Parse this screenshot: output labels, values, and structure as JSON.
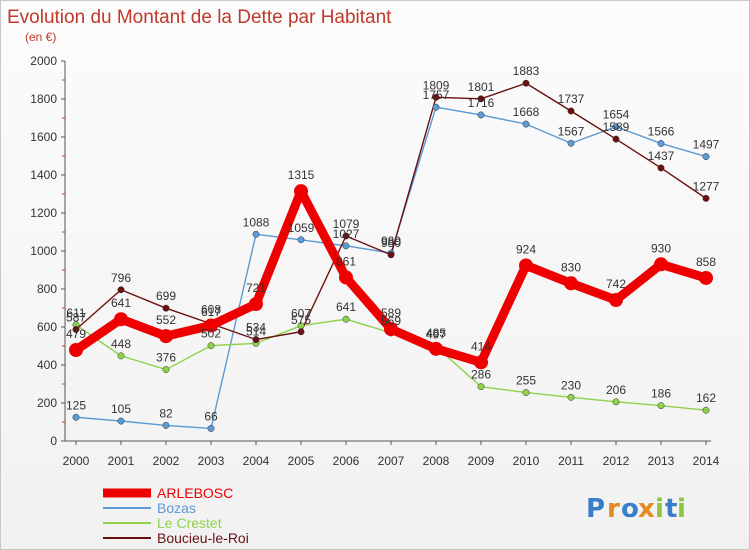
{
  "chart_data": {
    "type": "line",
    "title": "Evolution du Montant de la Dette par Habitant",
    "subtitle": "(en €)",
    "x": [
      "2000",
      "2001",
      "2002",
      "2003",
      "2004",
      "2005",
      "2006",
      "2007",
      "2008",
      "2009",
      "2010",
      "2011",
      "2012",
      "2013",
      "2014"
    ],
    "ylim": [
      0,
      2000
    ],
    "yticks": [
      0,
      200,
      400,
      600,
      800,
      1000,
      1200,
      1400,
      1600,
      1800,
      2000
    ],
    "grid": false,
    "legend_position": "bottom-left",
    "series": [
      {
        "name": "ARLEBOSC",
        "color": "#ee0000",
        "values": [
          479,
          641,
          552,
          608,
          721,
          1315,
          861,
          589,
          485,
          414,
          924,
          830,
          742,
          930,
          858
        ]
      },
      {
        "name": "Bozas",
        "color": "#5b9bd5",
        "values": [
          125,
          105,
          82,
          66,
          1088,
          1059,
          1027,
          989,
          1757,
          1716,
          1668,
          1567,
          1654,
          1566,
          1497
        ]
      },
      {
        "name": "Le Crestet",
        "color": "#8fd24a",
        "values": [
          611,
          448,
          376,
          502,
          514,
          607,
          641,
          569,
          497,
          286,
          255,
          230,
          206,
          186,
          162
        ]
      },
      {
        "name": "Boucieu-le-Roi",
        "color": "#6b1010",
        "values": [
          587,
          796,
          699,
          617,
          534,
          575,
          1079,
          980,
          1809,
          1801,
          1883,
          1737,
          1589,
          1437,
          1277
        ]
      }
    ]
  },
  "logo": {
    "text": "Proxiti",
    "letters": [
      "P",
      "r",
      "o",
      "x",
      "i",
      "t",
      "i"
    ],
    "colors": [
      "#3a7dc9",
      "#e58a1f",
      "#3a7dc9",
      "#e58a1f",
      "#8cc63f",
      "#3a7dc9",
      "#8cc63f"
    ]
  }
}
